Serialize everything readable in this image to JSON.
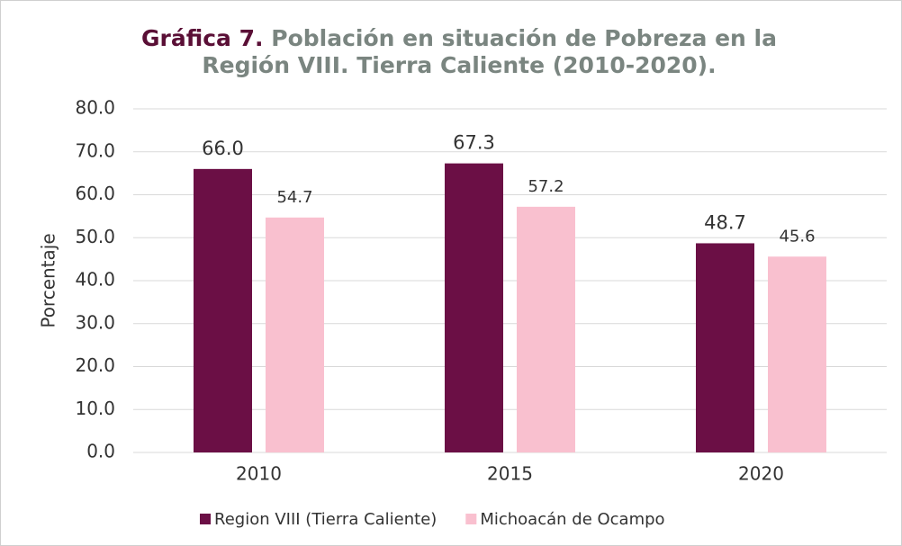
{
  "chart_data": {
    "type": "bar",
    "title_label": "Gráfica 7.",
    "title": "Población en situación de Pobreza en la Región VIII. Tierra Caliente (2010-2020).",
    "y_label": "Porcentaje",
    "categories": [
      "2010",
      "2015",
      "2020"
    ],
    "series": [
      {
        "name": "Region VIII (Tierra Caliente)",
        "color": "#6b0f45",
        "values": [
          66.0,
          67.3,
          48.7
        ],
        "value_labels": [
          "66.0",
          "67.3",
          "48.7"
        ]
      },
      {
        "name": "Michoacán de Ocampo",
        "color": "#f9c0cf",
        "values": [
          54.7,
          57.2,
          45.6
        ],
        "value_labels": [
          "54.7",
          "57.2",
          "45.6"
        ]
      }
    ],
    "ylim": [
      0,
      80
    ],
    "yticks": [
      {
        "value": 0,
        "label": "0.0"
      },
      {
        "value": 10,
        "label": "10.0"
      },
      {
        "value": 20,
        "label": "20.0"
      },
      {
        "value": 30,
        "label": "30.0"
      },
      {
        "value": 40,
        "label": "40.0"
      },
      {
        "value": 50,
        "label": "50.0"
      },
      {
        "value": 60,
        "label": "60.0"
      },
      {
        "value": 70,
        "label": "70.0"
      },
      {
        "value": 80,
        "label": "80.0"
      }
    ],
    "grid": true,
    "legend": "bottom"
  }
}
